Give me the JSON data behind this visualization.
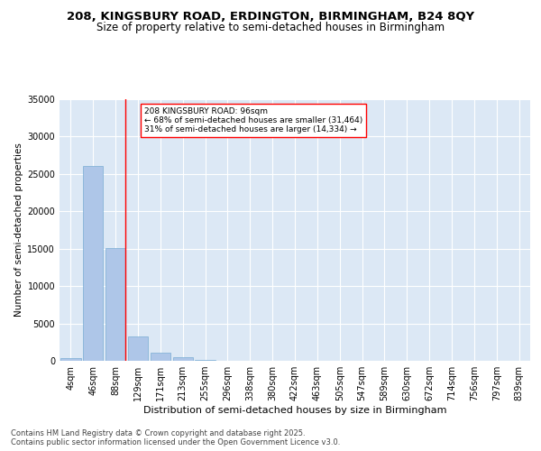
{
  "title1": "208, KINGSBURY ROAD, ERDINGTON, BIRMINGHAM, B24 8QY",
  "title2": "Size of property relative to semi-detached houses in Birmingham",
  "xlabel": "Distribution of semi-detached houses by size in Birmingham",
  "ylabel": "Number of semi-detached properties",
  "categories": [
    "4sqm",
    "46sqm",
    "88sqm",
    "129sqm",
    "171sqm",
    "213sqm",
    "255sqm",
    "296sqm",
    "338sqm",
    "380sqm",
    "422sqm",
    "463sqm",
    "505sqm",
    "547sqm",
    "589sqm",
    "630sqm",
    "672sqm",
    "714sqm",
    "756sqm",
    "797sqm",
    "839sqm"
  ],
  "values": [
    370,
    26100,
    15100,
    3300,
    1050,
    430,
    130,
    50,
    20,
    10,
    5,
    3,
    2,
    1,
    1,
    0,
    0,
    0,
    0,
    0,
    0
  ],
  "bar_color": "#aec6e8",
  "bar_edge_color": "#7aadd4",
  "red_line_bin_index": 2,
  "annotation_text": "208 KINGSBURY ROAD: 96sqm\n← 68% of semi-detached houses are smaller (31,464)\n31% of semi-detached houses are larger (14,334) →",
  "ylim": [
    0,
    35000
  ],
  "yticks": [
    0,
    5000,
    10000,
    15000,
    20000,
    25000,
    30000,
    35000
  ],
  "background_color": "#dce8f5",
  "grid_color": "#ffffff",
  "footer_text": "Contains HM Land Registry data © Crown copyright and database right 2025.\nContains public sector information licensed under the Open Government Licence v3.0.",
  "title1_fontsize": 9.5,
  "title2_fontsize": 8.5,
  "xlabel_fontsize": 8,
  "ylabel_fontsize": 7.5,
  "tick_fontsize": 7,
  "footer_fontsize": 6
}
